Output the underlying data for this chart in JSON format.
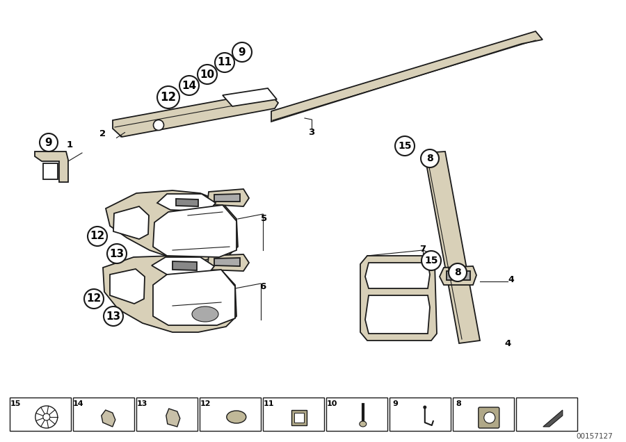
{
  "background_color": "#ffffff",
  "line_color": "#1a1a1a",
  "fill_strip": "#d8d0b8",
  "fill_console": "#ccc4aa",
  "watermark": "00157127",
  "lw_main": 1.3,
  "lw_thin": 0.8
}
